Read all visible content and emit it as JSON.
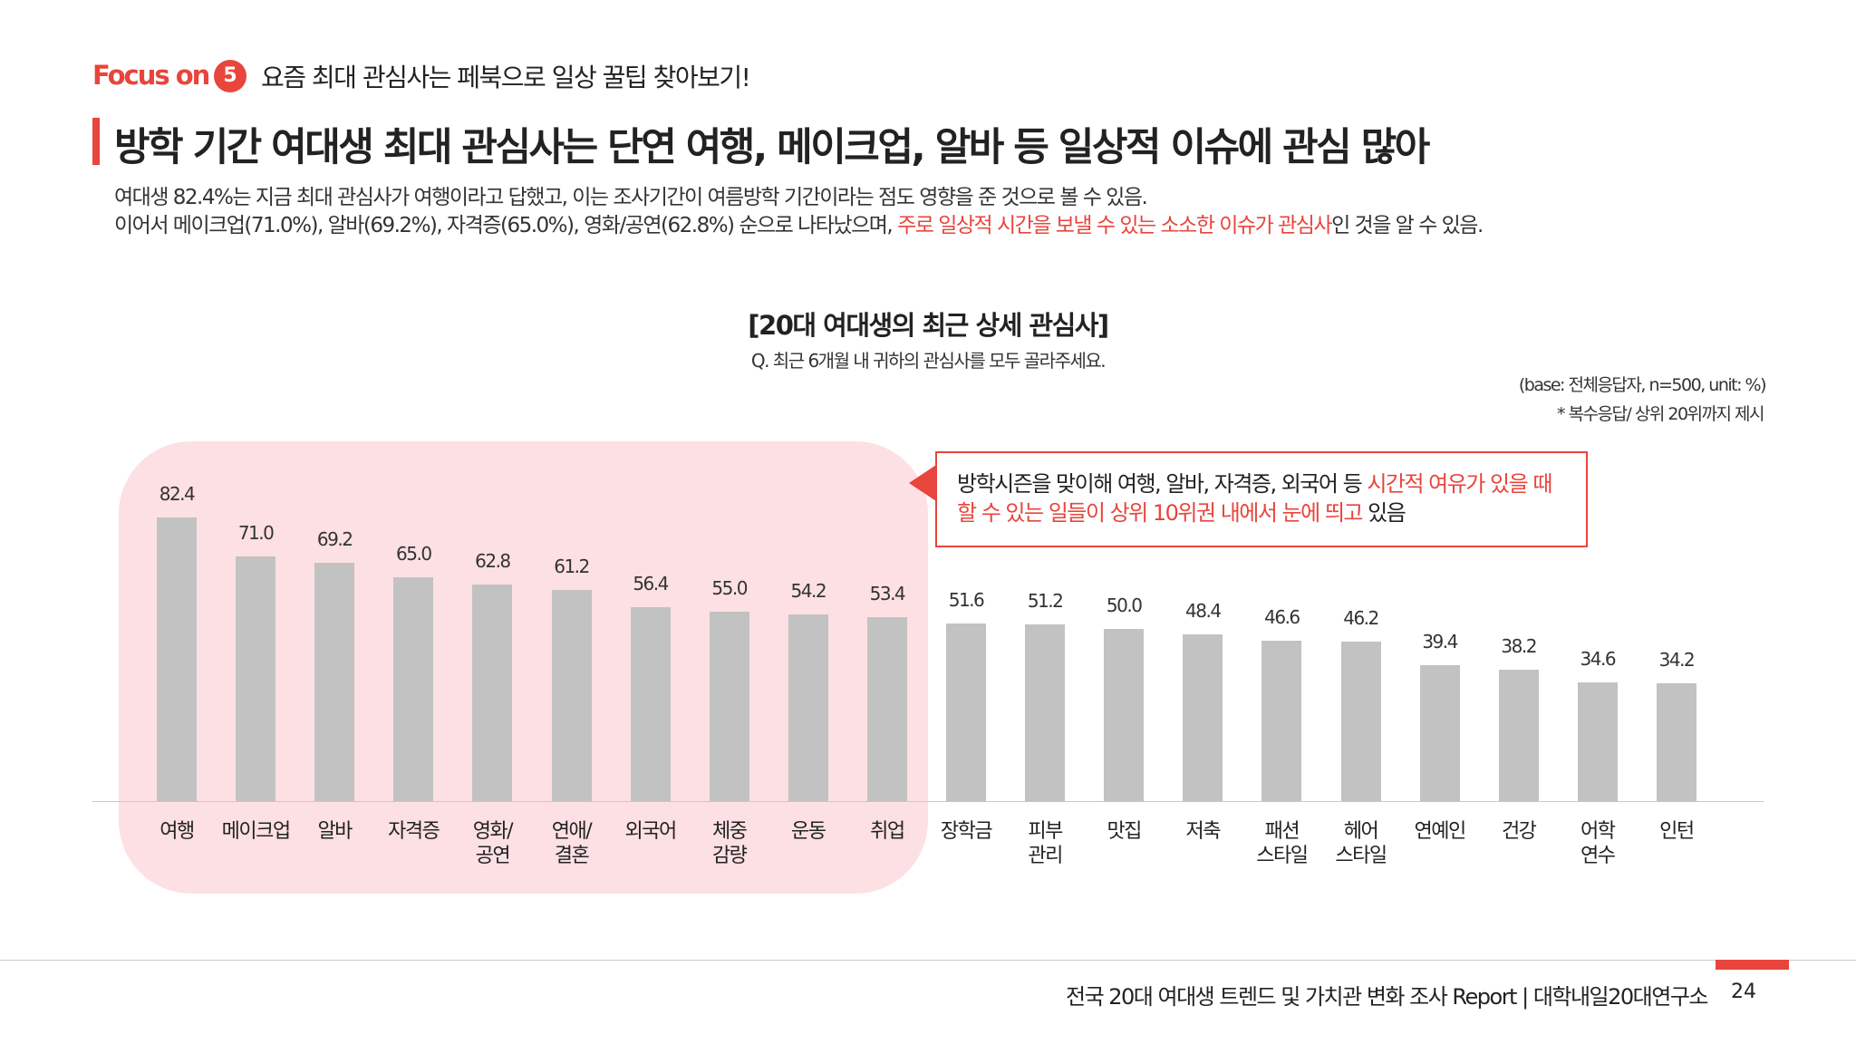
{
  "colors": {
    "accent": "#e8453c",
    "bar": "#c2c2c2",
    "highlight": "#fde0e3"
  },
  "header": {
    "focus_label": "Focus on",
    "section_number": "5",
    "section_title": "요즘 최대 관심사는 페북으로 일상 꿀팁 찾아보기!",
    "main_title": "방학 기간 여대생 최대 관심사는 단연 여행, 메이크업, 알바 등 일상적 이슈에 관심 많아",
    "desc_line1": "여대생 82.4%는 지금 최대 관심사가 여행이라고 답했고, 이는 조사기간이 여름방학 기간이라는 점도 영향을 준 것으로 볼 수 있음.",
    "desc_line2_pre": "이어서 메이크업(71.0%), 알바(69.2%), 자격증(65.0%), 영화/공연(62.8%) 순으로 나타났으며, ",
    "desc_line2_highlight": "주로 일상적 시간을 보낼 수 있는 소소한 이슈가 관심사",
    "desc_line2_post": "인 것을 알 수 있음."
  },
  "chart_header": {
    "title": "[20대 여대생의 최근 상세 관심사]",
    "question": "Q. 최근 6개월 내 귀하의 관심사를 모두 골라주세요.",
    "base_note": "(base: 전체응답자, n=500, unit: %)",
    "sub_note": "* 복수응답/ 상위 20위까지 제시"
  },
  "callout": {
    "line1_pre": "방학시즌을 맞이해 여행, 알바, 자격증, 외국어 등 ",
    "line1_highlight": "시간적 여유가 있을 때",
    "line2_highlight": "할 수 있는 일들이 상위 10위권 내에서 눈에 띄고",
    "line2_post": " 있음"
  },
  "chart_data": {
    "type": "bar",
    "title": "[20대 여대생의 최근 상세 관심사]",
    "xlabel": "",
    "ylabel": "",
    "unit": "%",
    "ylim": [
      0,
      100
    ],
    "grid": false,
    "categories": [
      [
        "여행"
      ],
      [
        "메이크업"
      ],
      [
        "알바"
      ],
      [
        "자격증"
      ],
      [
        "영화/",
        "공연"
      ],
      [
        "연애/",
        "결혼"
      ],
      [
        "외국어"
      ],
      [
        "체중",
        "감량"
      ],
      [
        "운동"
      ],
      [
        "취업"
      ],
      [
        "장학금"
      ],
      [
        "피부",
        "관리"
      ],
      [
        "맛집"
      ],
      [
        "저축"
      ],
      [
        "패션",
        "스타일"
      ],
      [
        "헤어",
        "스타일"
      ],
      [
        "연예인"
      ],
      [
        "건강"
      ],
      [
        "어학",
        "연수"
      ],
      [
        "인턴"
      ]
    ],
    "values": [
      82.4,
      71.0,
      69.2,
      65.0,
      62.8,
      61.2,
      56.4,
      55.0,
      54.2,
      53.4,
      51.6,
      51.2,
      50.0,
      48.4,
      46.6,
      46.2,
      39.4,
      38.2,
      34.6,
      34.2
    ],
    "value_labels": [
      "82.4",
      "71.0",
      "69.2",
      "65.0",
      "62.8",
      "61.2",
      "56.4",
      "55.0",
      "54.2",
      "53.4",
      "51.6",
      "51.2",
      "50.0",
      "48.4",
      "46.6",
      "46.2",
      "39.4",
      "38.2",
      "34.6",
      "34.2"
    ],
    "highlighted_top_n": 10
  },
  "footer": {
    "report_text": "전국 20대 여대생 트렌드 및 가치관 변화 조사 Report  |  대학내일20대연구소",
    "page_number": "24"
  }
}
